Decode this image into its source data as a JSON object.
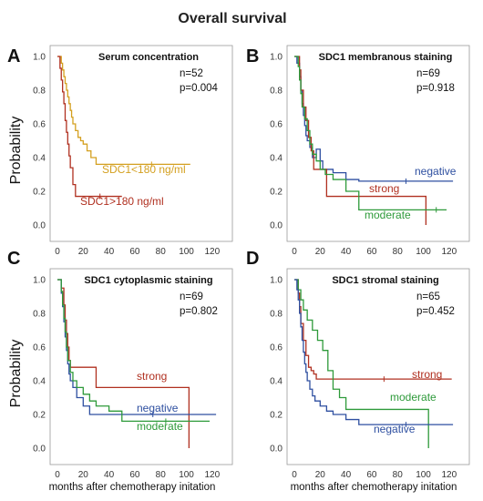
{
  "title": "Overall survival",
  "y_axis_label": "Probability",
  "x_axis_label": "months after chemotherapy initation",
  "chart_data": [
    {
      "type": "line",
      "panel": "A",
      "title": "Serum concentration",
      "n": "n=52",
      "p": "p=0.004",
      "xlim": [
        0,
        130
      ],
      "ylim": [
        0,
        1
      ],
      "xticks": [
        "0",
        "20",
        "40",
        "60",
        "80",
        "100",
        "120"
      ],
      "yticks": [
        "0.0",
        "0.2",
        "0.4",
        "0.6",
        "0.8",
        "1.0"
      ],
      "grid": false,
      "series": [
        {
          "name": "SDC1<180 ng/ml",
          "color": "#d4a020",
          "x": [
            0,
            3,
            4,
            5,
            6,
            7,
            8,
            9,
            10,
            11,
            12,
            14,
            16,
            18,
            20,
            23,
            26,
            30,
            35,
            43,
            103
          ],
          "y": [
            1.0,
            0.96,
            0.92,
            0.88,
            0.84,
            0.8,
            0.76,
            0.72,
            0.68,
            0.64,
            0.6,
            0.56,
            0.52,
            0.5,
            0.48,
            0.44,
            0.4,
            0.36,
            0.36,
            0.36,
            0.36
          ]
        },
        {
          "name": "SDC1>180 ng/ml",
          "color": "#b03020",
          "x": [
            0,
            2,
            3,
            4,
            5,
            6,
            7,
            8,
            9,
            10,
            12,
            14,
            16,
            50
          ],
          "y": [
            1.0,
            0.93,
            0.86,
            0.79,
            0.72,
            0.62,
            0.55,
            0.48,
            0.41,
            0.34,
            0.24,
            0.17,
            0.17,
            0.17
          ]
        }
      ]
    },
    {
      "type": "line",
      "panel": "B",
      "title": "SDC1 membranous staining",
      "n": "n=69",
      "p": "p=0.918",
      "xlim": [
        0,
        130
      ],
      "ylim": [
        0,
        1
      ],
      "xticks": [
        "0",
        "20",
        "40",
        "60",
        "80",
        "100",
        "120"
      ],
      "yticks": [
        "0.0",
        "0.2",
        "0.4",
        "0.6",
        "0.8",
        "1.0"
      ],
      "grid": false,
      "series": [
        {
          "name": "negative",
          "color": "#2e4fa0",
          "x": [
            0,
            2,
            4,
            5,
            6,
            7,
            8,
            9,
            10,
            12,
            14,
            17,
            20,
            22,
            30,
            40,
            50,
            123
          ],
          "y": [
            1.0,
            0.96,
            0.88,
            0.8,
            0.72,
            0.65,
            0.59,
            0.53,
            0.5,
            0.46,
            0.4,
            0.45,
            0.38,
            0.33,
            0.31,
            0.27,
            0.26,
            0.26
          ]
        },
        {
          "name": "strong",
          "color": "#b03020",
          "x": [
            0,
            3,
            4,
            5,
            7,
            9,
            11,
            13,
            15,
            20,
            25,
            102
          ],
          "y": [
            1.0,
            1.0,
            0.92,
            0.8,
            0.7,
            0.62,
            0.52,
            0.44,
            0.33,
            0.33,
            0.17,
            0.0
          ]
        },
        {
          "name": "moderate",
          "color": "#2e9a3a",
          "x": [
            0,
            3,
            4,
            5,
            6,
            8,
            10,
            12,
            14,
            17,
            20,
            24,
            30,
            40,
            50,
            102,
            118
          ],
          "y": [
            1.0,
            0.94,
            0.86,
            0.78,
            0.7,
            0.63,
            0.56,
            0.48,
            0.42,
            0.38,
            0.33,
            0.3,
            0.27,
            0.2,
            0.09,
            0.09,
            0.09
          ]
        }
      ]
    },
    {
      "type": "line",
      "panel": "C",
      "title": "SDC1 cytoplasmic staining",
      "n": "n=69",
      "p": "p=0.802",
      "xlim": [
        0,
        130
      ],
      "ylim": [
        0,
        1
      ],
      "xticks": [
        "0",
        "20",
        "40",
        "60",
        "80",
        "100",
        "120"
      ],
      "yticks": [
        "0.0",
        "0.2",
        "0.4",
        "0.6",
        "0.8",
        "1.0"
      ],
      "grid": false,
      "series": [
        {
          "name": "strong",
          "color": "#b03020",
          "x": [
            0,
            3,
            5,
            6,
            7,
            8,
            9,
            10,
            12,
            30,
            100,
            102
          ],
          "y": [
            1.0,
            0.95,
            0.85,
            0.76,
            0.68,
            0.6,
            0.52,
            0.48,
            0.48,
            0.36,
            0.36,
            0.0
          ]
        },
        {
          "name": "negative",
          "color": "#2e4fa0",
          "x": [
            0,
            3,
            4,
            5,
            6,
            7,
            8,
            9,
            10,
            12,
            15,
            20,
            25,
            123
          ],
          "y": [
            1.0,
            0.92,
            0.84,
            0.75,
            0.66,
            0.58,
            0.5,
            0.44,
            0.4,
            0.36,
            0.3,
            0.25,
            0.2,
            0.2
          ]
        },
        {
          "name": "moderate",
          "color": "#2e9a3a",
          "x": [
            0,
            3,
            4,
            5,
            6,
            7,
            8,
            10,
            12,
            15,
            20,
            25,
            30,
            40,
            50,
            118
          ],
          "y": [
            1.0,
            0.93,
            0.85,
            0.77,
            0.69,
            0.6,
            0.52,
            0.45,
            0.4,
            0.36,
            0.32,
            0.28,
            0.25,
            0.22,
            0.16,
            0.16
          ]
        }
      ]
    },
    {
      "type": "line",
      "panel": "D",
      "title": "SDC1 stromal staining",
      "n": "n=65",
      "p": "p=0.452",
      "xlim": [
        0,
        130
      ],
      "ylim": [
        0,
        1
      ],
      "xticks": [
        "0",
        "20",
        "40",
        "60",
        "80",
        "100",
        "120"
      ],
      "yticks": [
        "0.0",
        "0.2",
        "0.4",
        "0.6",
        "0.8",
        "1.0"
      ],
      "grid": false,
      "series": [
        {
          "name": "strong",
          "color": "#b03020",
          "x": [
            0,
            3,
            4,
            5,
            7,
            9,
            11,
            13,
            15,
            17,
            122
          ],
          "y": [
            1.0,
            0.92,
            0.84,
            0.74,
            0.64,
            0.55,
            0.48,
            0.46,
            0.44,
            0.41,
            0.41
          ]
        },
        {
          "name": "moderate",
          "color": "#2e9a3a",
          "x": [
            0,
            3,
            5,
            7,
            10,
            14,
            18,
            22,
            26,
            30,
            35,
            40,
            60,
            102,
            104
          ],
          "y": [
            1.0,
            0.94,
            0.88,
            0.82,
            0.76,
            0.7,
            0.64,
            0.58,
            0.46,
            0.35,
            0.3,
            0.23,
            0.23,
            0.23,
            0.0
          ]
        },
        {
          "name": "negative",
          "color": "#2e4fa0",
          "x": [
            0,
            2,
            3,
            4,
            5,
            6,
            7,
            8,
            9,
            10,
            12,
            14,
            16,
            20,
            25,
            30,
            40,
            50,
            123
          ],
          "y": [
            1.0,
            0.94,
            0.88,
            0.8,
            0.72,
            0.64,
            0.57,
            0.5,
            0.45,
            0.4,
            0.35,
            0.31,
            0.28,
            0.25,
            0.22,
            0.2,
            0.17,
            0.14,
            0.14
          ]
        }
      ]
    }
  ]
}
